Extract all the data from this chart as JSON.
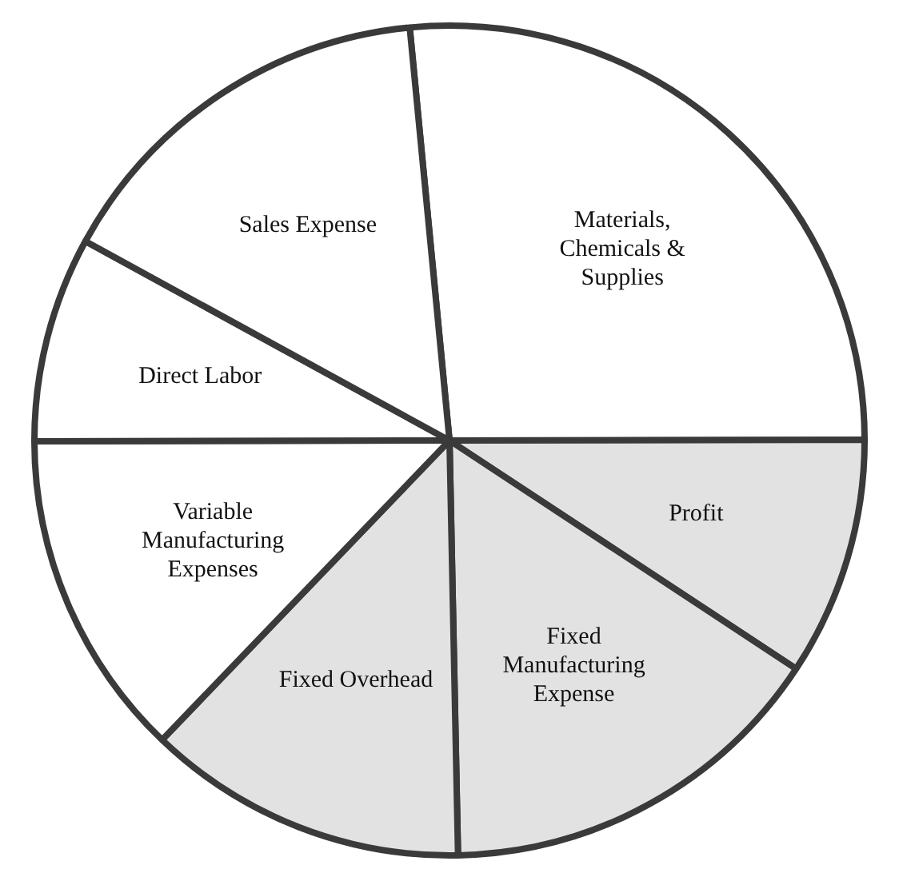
{
  "chart_data": {
    "type": "pie",
    "categories": [
      "Materials, Chemicals & Supplies",
      "Profit",
      "Fixed Manufacturing Expense",
      "Fixed Overhead",
      "Variable Manufacturing Expenses",
      "Direct Labor",
      "Sales Expense"
    ],
    "values": [
      26.5,
      9.3,
      15.4,
      12.5,
      12.8,
      8.0,
      15.5
    ],
    "colors": [
      "#ffffff",
      "#e2e2e2",
      "#e2e2e2",
      "#e2e2e2",
      "#ffffff",
      "#ffffff",
      "#ffffff"
    ],
    "legend": false
  }
}
